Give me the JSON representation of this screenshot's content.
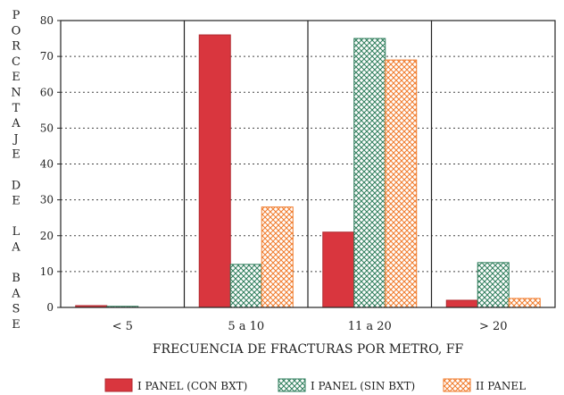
{
  "chart_data": {
    "type": "bar",
    "ylabel": "PORCENTAJE DE LA BASE",
    "ylabel_lines": [
      "P",
      "O",
      "R",
      "C",
      "E",
      "N",
      "T",
      "A",
      "J",
      "E",
      "",
      "D",
      "E",
      "",
      "L",
      "A",
      "",
      "B",
      "A",
      "S",
      "E"
    ],
    "xlabel": "FRECUENCIA DE FRACTURAS POR METRO, FF",
    "categories": [
      "< 5",
      "5 a 10",
      "11 a 20",
      "> 20"
    ],
    "ylim": [
      0,
      80
    ],
    "yticks": [
      0,
      10,
      20,
      30,
      40,
      50,
      60,
      70,
      80
    ],
    "grid": true,
    "legend_position": "bottom",
    "series": [
      {
        "name": "I PANEL (CON BXT)",
        "values": [
          0.5,
          76,
          21,
          2
        ],
        "color": "#d9363e",
        "pattern": "solid"
      },
      {
        "name": "I PANEL (SIN BXT)",
        "values": [
          0.3,
          12,
          75,
          12.5
        ],
        "color": "#2e7d5b",
        "pattern": "crosshatch"
      },
      {
        "name": "II PANEL",
        "values": [
          0,
          28,
          69,
          2.5
        ],
        "color": "#f07a2a",
        "pattern": "crosshatch"
      }
    ]
  }
}
